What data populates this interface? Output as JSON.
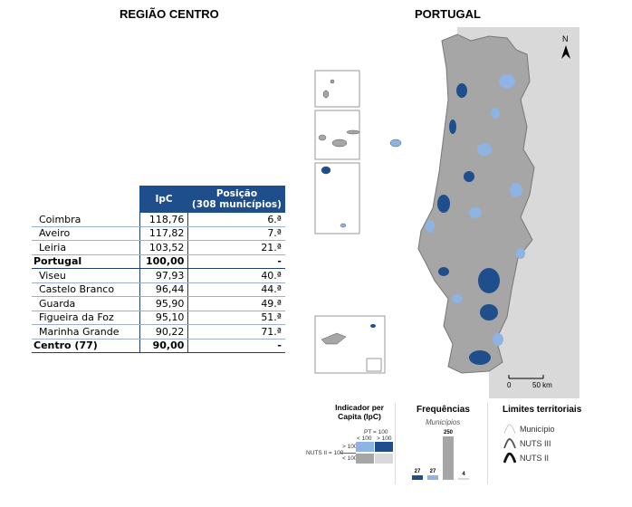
{
  "left_title": "REGIÃO CENTRO",
  "right_title": "PORTUGAL",
  "table": {
    "headers": [
      "IpC",
      "Posição",
      "(308 municípios)"
    ],
    "rows": [
      {
        "name": "Coimbra",
        "ipc": "118,76",
        "pos": "6.ª",
        "bold": false
      },
      {
        "name": "Aveiro",
        "ipc": "117,82",
        "pos": "7.ª",
        "bold": false
      },
      {
        "name": "Leiria",
        "ipc": "103,52",
        "pos": "21.ª",
        "bold": false
      },
      {
        "name": "Portugal",
        "ipc": "100,00",
        "pos": "-",
        "bold": true
      },
      {
        "name": "Viseu",
        "ipc": "97,93",
        "pos": "40.ª",
        "bold": false
      },
      {
        "name": "Castelo Branco",
        "ipc": "96,44",
        "pos": "44.ª",
        "bold": false
      },
      {
        "name": "Guarda",
        "ipc": "95,90",
        "pos": "49.ª",
        "bold": false
      },
      {
        "name": "Figueira da Foz",
        "ipc": "95,10",
        "pos": "51.ª",
        "bold": false
      },
      {
        "name": "Marinha Grande",
        "ipc": "90,22",
        "pos": "71.ª",
        "bold": false
      },
      {
        "name": "Centro (77)",
        "ipc": "90,00",
        "pos": "-",
        "bold": true
      }
    ]
  },
  "map": {
    "north_label": "N",
    "scale_start": "0",
    "scale_end": "50 km"
  },
  "legend": {
    "indicator_title": "Indicador per Capita (IpC)",
    "pt_label": "PT = 100",
    "lt100": "< 100",
    "gt100": "> 100",
    "nuts_label": "NUTS II = 100",
    "colors": {
      "dark_blue": "#1f4e8c",
      "light_blue": "#8eb4e3",
      "dark_grey": "#a6a6a6",
      "light_grey": "#d9d9d9"
    },
    "freq_title": "Frequências",
    "freq_subtitle": "Municípios",
    "freq_values": [
      27,
      27,
      250,
      4
    ],
    "limits_title": "Limites territoriais",
    "limits": [
      "Município",
      "NUTS III",
      "NUTS II"
    ]
  }
}
